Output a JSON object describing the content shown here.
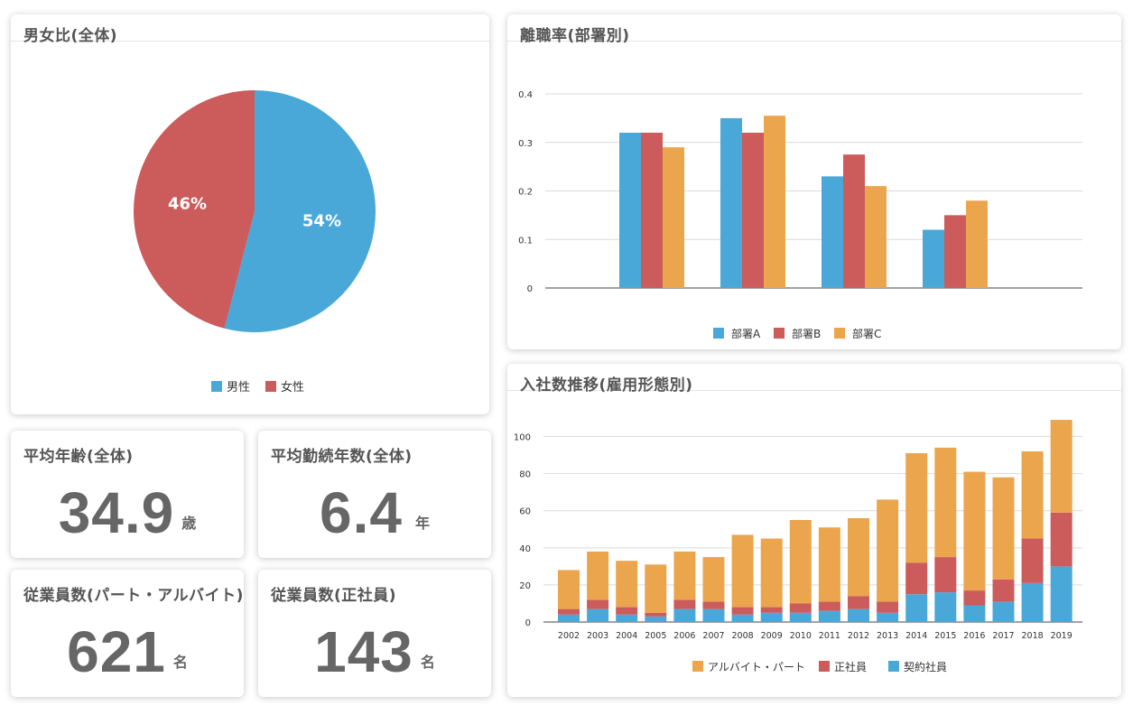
{
  "colors": {
    "blue": "#4aa8d8",
    "red": "#cc5b5b",
    "orange": "#eba54d",
    "grid": "#d9d9d9",
    "axis": "#444444",
    "text": "#555555"
  },
  "cards": {
    "gender": {
      "title": "男女比(全体)"
    },
    "turnover": {
      "title": "離職率(部署別)"
    },
    "hires": {
      "title": "入社数推移(雇用形態別)"
    }
  },
  "kpis": {
    "avg_age": {
      "title": "平均年齢(全体)",
      "value": "34.9",
      "unit": "歳"
    },
    "avg_tenure": {
      "title": "平均勤続年数(全体)",
      "value": "6.4",
      "unit": "年"
    },
    "staff_part": {
      "title": "従業員数(パート・アルバイト)",
      "value": "621",
      "unit": "名"
    },
    "staff_full": {
      "title": "従業員数(正社員)",
      "value": "143",
      "unit": "名"
    }
  },
  "chart_data": [
    {
      "id": "gender",
      "type": "pie",
      "title": "男女比(全体)",
      "slices": [
        {
          "label": "男性",
          "value": 54,
          "display": "54%",
          "color": "#4aa8d8"
        },
        {
          "label": "女性",
          "value": 46,
          "display": "46%",
          "color": "#cc5b5b"
        }
      ],
      "legend": "bottom-center"
    },
    {
      "id": "turnover",
      "type": "bar",
      "title": "離職率(部署別)",
      "categories": [
        "",
        "",
        "",
        ""
      ],
      "series": [
        {
          "name": "部署A",
          "color": "#4aa8d8",
          "values": [
            0.32,
            0.35,
            0.23,
            0.12
          ]
        },
        {
          "name": "部署B",
          "color": "#cc5b5b",
          "values": [
            0.32,
            0.32,
            0.275,
            0.15
          ]
        },
        {
          "name": "部署C",
          "color": "#eba54d",
          "values": [
            0.29,
            0.355,
            0.21,
            0.18
          ]
        }
      ],
      "ylim": [
        0,
        0.4
      ],
      "yticks": [
        "0",
        "0.1",
        "0.2",
        "0.3",
        "0.4"
      ],
      "ytick_values": [
        0,
        0.1,
        0.2,
        0.3,
        0.4
      ],
      "grid": true,
      "legend": "bottom-center"
    },
    {
      "id": "hires",
      "type": "bar",
      "stacked": true,
      "title": "入社数推移(雇用形態別)",
      "categories": [
        "2002",
        "2003",
        "2004",
        "2005",
        "2006",
        "2007",
        "2008",
        "2009",
        "2010",
        "2011",
        "2012",
        "2013",
        "2014",
        "2015",
        "2016",
        "2017",
        "2018",
        "2019"
      ],
      "series": [
        {
          "name": "契約社員",
          "color": "#4aa8d8",
          "values": [
            4,
            7,
            4,
            3,
            7,
            7,
            4,
            5,
            5,
            6,
            7,
            5,
            15,
            16,
            9,
            11,
            21,
            30
          ]
        },
        {
          "name": "正社員",
          "color": "#cc5b5b",
          "values": [
            3,
            5,
            4,
            2,
            5,
            4,
            4,
            3,
            5,
            5,
            7,
            6,
            17,
            19,
            8,
            12,
            24,
            29
          ]
        },
        {
          "name": "アルバイト・パート",
          "color": "#eba54d",
          "values": [
            21,
            26,
            25,
            26,
            26,
            24,
            39,
            37,
            45,
            40,
            42,
            55,
            59,
            59,
            64,
            55,
            47,
            50
          ]
        }
      ],
      "legend_order": [
        "アルバイト・パート",
        "正社員",
        "契約社員"
      ],
      "ylim": [
        0,
        110
      ],
      "yticks": [
        "0",
        "20",
        "40",
        "60",
        "80",
        "100"
      ],
      "ytick_values": [
        0,
        20,
        40,
        60,
        80,
        100
      ],
      "grid": true,
      "legend": "bottom-center"
    }
  ]
}
